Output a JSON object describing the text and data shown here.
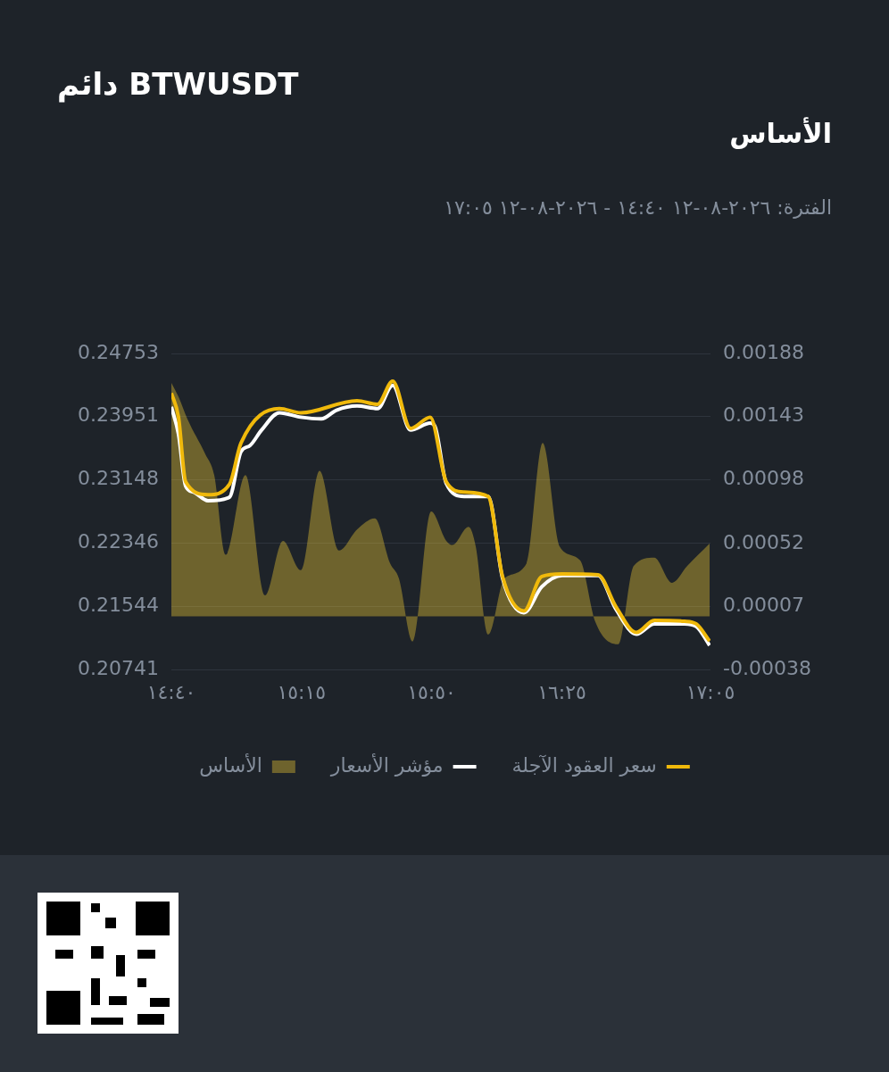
{
  "chart_data": {
    "type": "line",
    "title": "دائم BTWUSDT",
    "subtitle": "الأساس",
    "annotations": [
      "الفترة: ٢٠٢٦-٠٨-١٢ ١٤:٤٠ - ٢٠٢٦-٠٨-١٢ ١٧:٠٥"
    ],
    "xlim": [
      14.667,
      17.083
    ],
    "xticks": [
      {
        "value": 14.667,
        "label": "١٤:٤٠"
      },
      {
        "value": 15.25,
        "label": "١٥:١٥"
      },
      {
        "value": 15.833,
        "label": "١٥:٥٠"
      },
      {
        "value": 16.417,
        "label": "١٦:٢٥"
      },
      {
        "value": 17.083,
        "label": "١٧:٠٥"
      }
    ],
    "ylim": [
      0.20741,
      0.24753
    ],
    "yticks": [
      0.20741,
      0.21544,
      0.22346,
      0.23148,
      0.23951,
      0.24753
    ],
    "y2lim": [
      -0.00038,
      0.00188
    ],
    "y2ticks": [
      -0.00038,
      {
        "value": 7e-05,
        "label": "0.00007"
      },
      0.00052,
      0.00098,
      0.00143,
      0.00188
    ],
    "grid": "y",
    "legend": "bottom",
    "marker": "none",
    "series": [
      {
        "name": "سعر العقود الآجلة",
        "type": "line",
        "color": "#f0b90b",
        "x": [
          14.667,
          14.699,
          14.731,
          14.831,
          14.927,
          14.979,
          15.151,
          15.247,
          15.499,
          15.591,
          15.659,
          15.739,
          15.827,
          15.899,
          15.979,
          16.087,
          16.151,
          16.247,
          16.327,
          16.419,
          16.579,
          16.659,
          16.751,
          16.831,
          16.967,
          17.019,
          17.079
        ],
        "values": [
          0.2425,
          0.23944,
          0.23124,
          0.2296,
          0.23091,
          0.23616,
          0.24053,
          0.23999,
          0.24152,
          0.24108,
          0.24403,
          0.23802,
          0.23944,
          0.23124,
          0.22993,
          0.22938,
          0.21922,
          0.21484,
          0.21922,
          0.21954,
          0.21943,
          0.21539,
          0.21211,
          0.21364,
          0.21353,
          0.2132,
          0.21102
        ]
      },
      {
        "name": "مؤشر الأسعار",
        "type": "line",
        "color": "#ffffff",
        "x": [
          14.667,
          14.699,
          14.731,
          14.767,
          14.831,
          14.927,
          14.979,
          15.019,
          15.071,
          15.151,
          15.247,
          15.339,
          15.407,
          15.499,
          15.591,
          15.659,
          15.739,
          15.827,
          15.847,
          15.899,
          15.979,
          16.087,
          16.151,
          16.247,
          16.327,
          16.419,
          16.579,
          16.659,
          16.751,
          16.831,
          16.967,
          17.019,
          17.079
        ],
        "values": [
          0.24075,
          0.23725,
          0.23069,
          0.22993,
          0.22884,
          0.22927,
          0.23507,
          0.23583,
          0.2378,
          0.24,
          0.23944,
          0.23922,
          0.24032,
          0.24086,
          0.24053,
          0.24349,
          0.2378,
          0.23868,
          0.23835,
          0.23102,
          0.22938,
          0.22938,
          0.219,
          0.21462,
          0.2179,
          0.21933,
          0.21933,
          0.21506,
          0.21189,
          0.2132,
          0.2132,
          0.21288,
          0.21047
        ]
      },
      {
        "name": "الأساس",
        "type": "area",
        "axis": "y2",
        "color": "#fcd535",
        "x": [
          14.667,
          14.699,
          14.739,
          14.819,
          14.859,
          14.911,
          14.999,
          15.087,
          15.167,
          15.247,
          15.331,
          15.419,
          15.499,
          15.579,
          15.647,
          15.687,
          15.747,
          15.831,
          15.899,
          15.927,
          15.999,
          16.031,
          16.087,
          16.159,
          16.259,
          16.331,
          16.407,
          16.499,
          16.567,
          16.671,
          16.739,
          16.831,
          16.911,
          16.979,
          17.079
        ],
        "values": [
          0.00167,
          0.00157,
          0.00141,
          0.00116,
          0.00101,
          0.00044,
          0.00101,
          0.00015,
          0.00054,
          0.00033,
          0.00104,
          0.00047,
          0.00062,
          0.0007,
          0.00038,
          0.00027,
          -0.00018,
          0.00075,
          0.00054,
          0.00051,
          0.00064,
          0.0005,
          -0.00013,
          0.00027,
          0.00038,
          0.00124,
          0.0005,
          0.0004,
          -4e-05,
          -0.0002,
          0.00036,
          0.00042,
          0.00024,
          0.00036,
          0.00052
        ]
      }
    ]
  }
}
